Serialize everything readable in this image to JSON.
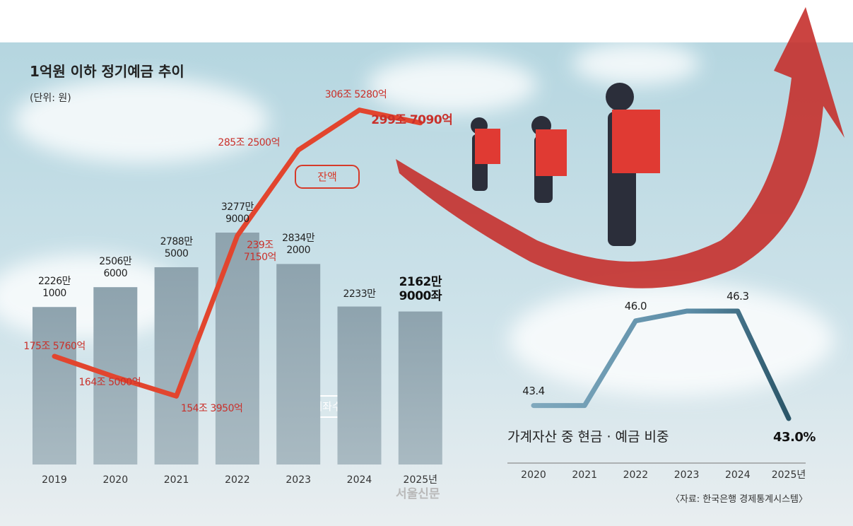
{
  "title": "1억원 이하 정기예금 추이",
  "subtitle": "(단위: 원)",
  "chart_data": [
    {
      "type": "bar",
      "categories": [
        "2019",
        "2020",
        "2021",
        "2022",
        "2023",
        "2024",
        "2025년"
      ],
      "series": [
        {
          "name": "계좌수",
          "type": "bar",
          "color": "#8da2ad",
          "values": [
            22261000,
            25066000,
            27885000,
            32779000,
            28342000,
            22330000,
            21629000
          ],
          "value_labels": [
            "2226만\n1000",
            "2506만\n6000",
            "2788만\n5000",
            "3277만\n9000",
            "2834만\n2000",
            "2233만",
            "2162만\n9000좌"
          ]
        },
        {
          "name": "잔액",
          "type": "line",
          "color": "#e2452e",
          "values": [
            1755760,
            1645000,
            1543950,
            2397150,
            2852500,
            3065280,
            2997090
          ],
          "value_labels": [
            "175조 5760억",
            "164조 5000억",
            "154조 3950억",
            "239조\n7150억",
            "285조 2500억",
            "306조 5280억",
            "299조 7090억"
          ]
        }
      ]
    },
    {
      "type": "line",
      "title": "가계자산 중 현금 · 예금 비중",
      "categories": [
        "2020",
        "2021",
        "2022",
        "2023",
        "2024",
        "2025년"
      ],
      "series": [
        {
          "color": "#5b8fa8",
          "values": [
            43.4,
            43.4,
            46.0,
            46.3,
            46.3,
            43.0
          ],
          "value_labels": [
            "43.4",
            null,
            "46.0",
            null,
            "46.3",
            "43.0%"
          ]
        }
      ]
    }
  ],
  "source": "〈자료: 한국은행 경제통계시스템〉",
  "watermark": "서울신문"
}
